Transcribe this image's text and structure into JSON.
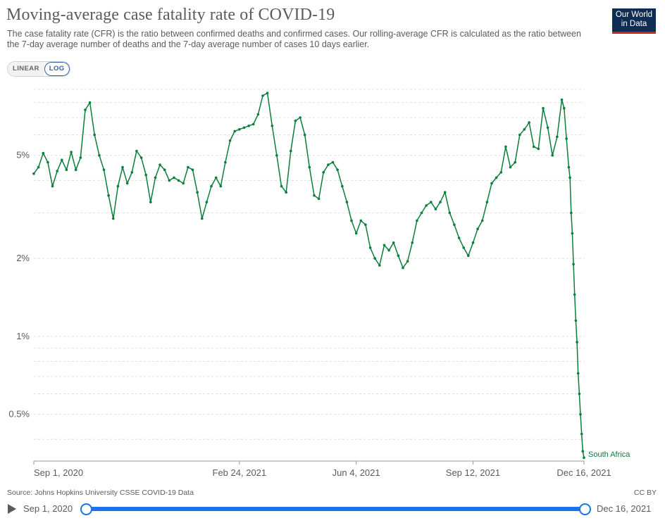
{
  "header": {
    "title": "Moving-average case fatality rate of COVID-19",
    "subtitle": "The case fatality rate (CFR) is the ratio between confirmed deaths and confirmed cases. Our rolling-average CFR is calculated as the ratio between the 7-day average number of deaths and the 7-day average number of cases 10 days earlier."
  },
  "logo": {
    "line1": "Our World",
    "line2": "in Data"
  },
  "controls": {
    "linear_label": "LINEAR",
    "log_label": "LOG",
    "active": "LOG"
  },
  "footer": {
    "source": "Source: Johns Hopkins University CSSE COVID-19 Data",
    "license": "CC BY"
  },
  "timeline": {
    "start_label": "Sep 1, 2020",
    "end_label": "Dec 16, 2021"
  },
  "colors": {
    "series": "#0a7e3b",
    "text": "#5b5b5b",
    "grid": "#dddddd",
    "timeline": "#1a73e8",
    "logo_bg": "#0f2d52",
    "logo_bar": "#ce261e"
  },
  "chart_data": {
    "type": "line",
    "title": "Moving-average case fatality rate of COVID-19",
    "y_scale": "log",
    "y_unit": "%",
    "y_ticks": [
      {
        "value": 0.5,
        "label": "0.5%"
      },
      {
        "value": 1,
        "label": "1%"
      },
      {
        "value": 2,
        "label": "2%"
      },
      {
        "value": 5,
        "label": "5%"
      }
    ],
    "x_ticks": [
      {
        "date": "2020-09-01",
        "label": "Sep 1, 2020"
      },
      {
        "date": "2021-02-24",
        "label": "Feb 24, 2021"
      },
      {
        "date": "2021-06-04",
        "label": "Jun 4, 2021"
      },
      {
        "date": "2021-09-12",
        "label": "Sep 12, 2021"
      },
      {
        "date": "2021-12-16",
        "label": "Dec 16, 2021"
      }
    ],
    "xlim": [
      "2020-09-01",
      "2021-12-16"
    ],
    "ylim": [
      0.33,
      10
    ],
    "legend": "end-label",
    "series": [
      {
        "name": "South Africa",
        "points": [
          [
            "2020-09-01",
            4.25
          ],
          [
            "2020-09-05",
            4.5
          ],
          [
            "2020-09-09",
            5.1
          ],
          [
            "2020-09-13",
            4.7
          ],
          [
            "2020-09-17",
            3.8
          ],
          [
            "2020-09-21",
            4.35
          ],
          [
            "2020-09-25",
            4.8
          ],
          [
            "2020-09-29",
            4.4
          ],
          [
            "2020-10-03",
            5.15
          ],
          [
            "2020-10-07",
            4.4
          ],
          [
            "2020-10-11",
            4.9
          ],
          [
            "2020-10-15",
            7.5
          ],
          [
            "2020-10-19",
            8.0
          ],
          [
            "2020-10-23",
            6.0
          ],
          [
            "2020-10-27",
            5.0
          ],
          [
            "2020-10-31",
            4.4
          ],
          [
            "2020-11-04",
            3.5
          ],
          [
            "2020-11-08",
            2.85
          ],
          [
            "2020-11-12",
            3.8
          ],
          [
            "2020-11-16",
            4.5
          ],
          [
            "2020-11-20",
            3.9
          ],
          [
            "2020-11-24",
            4.3
          ],
          [
            "2020-11-28",
            5.2
          ],
          [
            "2020-12-02",
            4.9
          ],
          [
            "2020-12-06",
            4.2
          ],
          [
            "2020-12-10",
            3.3
          ],
          [
            "2020-12-14",
            4.1
          ],
          [
            "2020-12-18",
            4.6
          ],
          [
            "2020-12-22",
            4.4
          ],
          [
            "2020-12-26",
            4.0
          ],
          [
            "2020-12-30",
            4.1
          ],
          [
            "2021-01-03",
            4.0
          ],
          [
            "2021-01-07",
            3.9
          ],
          [
            "2021-01-11",
            4.5
          ],
          [
            "2021-01-15",
            4.4
          ],
          [
            "2021-01-19",
            3.6
          ],
          [
            "2021-01-23",
            2.85
          ],
          [
            "2021-01-27",
            3.3
          ],
          [
            "2021-01-31",
            3.8
          ],
          [
            "2021-02-04",
            4.1
          ],
          [
            "2021-02-08",
            3.8
          ],
          [
            "2021-02-12",
            4.7
          ],
          [
            "2021-02-16",
            5.7
          ],
          [
            "2021-02-20",
            6.2
          ],
          [
            "2021-02-24",
            6.3
          ],
          [
            "2021-02-28",
            6.4
          ],
          [
            "2021-03-04",
            6.5
          ],
          [
            "2021-03-08",
            6.6
          ],
          [
            "2021-03-12",
            7.2
          ],
          [
            "2021-03-16",
            8.5
          ],
          [
            "2021-03-20",
            8.7
          ],
          [
            "2021-03-24",
            6.5
          ],
          [
            "2021-03-28",
            5.0
          ],
          [
            "2021-04-01",
            3.8
          ],
          [
            "2021-04-05",
            3.6
          ],
          [
            "2021-04-09",
            5.2
          ],
          [
            "2021-04-13",
            6.8
          ],
          [
            "2021-04-17",
            7.0
          ],
          [
            "2021-04-21",
            6.0
          ],
          [
            "2021-04-25",
            4.5
          ],
          [
            "2021-04-29",
            3.5
          ],
          [
            "2021-05-03",
            3.4
          ],
          [
            "2021-05-07",
            4.3
          ],
          [
            "2021-05-11",
            4.6
          ],
          [
            "2021-05-15",
            4.7
          ],
          [
            "2021-05-19",
            4.4
          ],
          [
            "2021-05-23",
            3.8
          ],
          [
            "2021-05-27",
            3.3
          ],
          [
            "2021-05-31",
            2.8
          ],
          [
            "2021-06-04",
            2.5
          ],
          [
            "2021-06-08",
            2.8
          ],
          [
            "2021-06-12",
            2.7
          ],
          [
            "2021-06-16",
            2.2
          ],
          [
            "2021-06-20",
            2.0
          ],
          [
            "2021-06-24",
            1.88
          ],
          [
            "2021-06-28",
            2.25
          ],
          [
            "2021-07-02",
            2.15
          ],
          [
            "2021-07-06",
            2.3
          ],
          [
            "2021-07-10",
            2.05
          ],
          [
            "2021-07-14",
            1.84
          ],
          [
            "2021-07-18",
            1.95
          ],
          [
            "2021-07-22",
            2.3
          ],
          [
            "2021-07-26",
            2.8
          ],
          [
            "2021-07-30",
            3.0
          ],
          [
            "2021-08-03",
            3.2
          ],
          [
            "2021-08-07",
            3.3
          ],
          [
            "2021-08-11",
            3.1
          ],
          [
            "2021-08-15",
            3.3
          ],
          [
            "2021-08-19",
            3.6
          ],
          [
            "2021-08-23",
            3.0
          ],
          [
            "2021-08-27",
            2.7
          ],
          [
            "2021-08-31",
            2.4
          ],
          [
            "2021-09-04",
            2.2
          ],
          [
            "2021-09-08",
            2.05
          ],
          [
            "2021-09-12",
            2.3
          ],
          [
            "2021-09-16",
            2.6
          ],
          [
            "2021-09-20",
            2.8
          ],
          [
            "2021-09-24",
            3.3
          ],
          [
            "2021-09-28",
            3.9
          ],
          [
            "2021-10-02",
            4.1
          ],
          [
            "2021-10-06",
            4.3
          ],
          [
            "2021-10-10",
            5.4
          ],
          [
            "2021-10-14",
            4.5
          ],
          [
            "2021-10-18",
            4.7
          ],
          [
            "2021-10-22",
            6.0
          ],
          [
            "2021-10-26",
            6.3
          ],
          [
            "2021-10-30",
            6.7
          ],
          [
            "2021-11-03",
            5.4
          ],
          [
            "2021-11-07",
            5.3
          ],
          [
            "2021-11-11",
            7.6
          ],
          [
            "2021-11-15",
            6.4
          ],
          [
            "2021-11-19",
            5.0
          ],
          [
            "2021-11-23",
            5.9
          ],
          [
            "2021-11-27",
            8.2
          ],
          [
            "2021-11-29",
            7.6
          ],
          [
            "2021-12-01",
            5.8
          ],
          [
            "2021-12-03",
            4.5
          ],
          [
            "2021-12-04",
            4.1
          ],
          [
            "2021-12-05",
            3.0
          ],
          [
            "2021-12-06",
            2.5
          ],
          [
            "2021-12-07",
            1.9
          ],
          [
            "2021-12-08",
            1.45
          ],
          [
            "2021-12-09",
            1.15
          ],
          [
            "2021-12-10",
            0.95
          ],
          [
            "2021-12-11",
            0.72
          ],
          [
            "2021-12-12",
            0.6
          ],
          [
            "2021-12-13",
            0.5
          ],
          [
            "2021-12-14",
            0.42
          ],
          [
            "2021-12-15",
            0.36
          ],
          [
            "2021-12-16",
            0.34
          ]
        ]
      }
    ]
  }
}
